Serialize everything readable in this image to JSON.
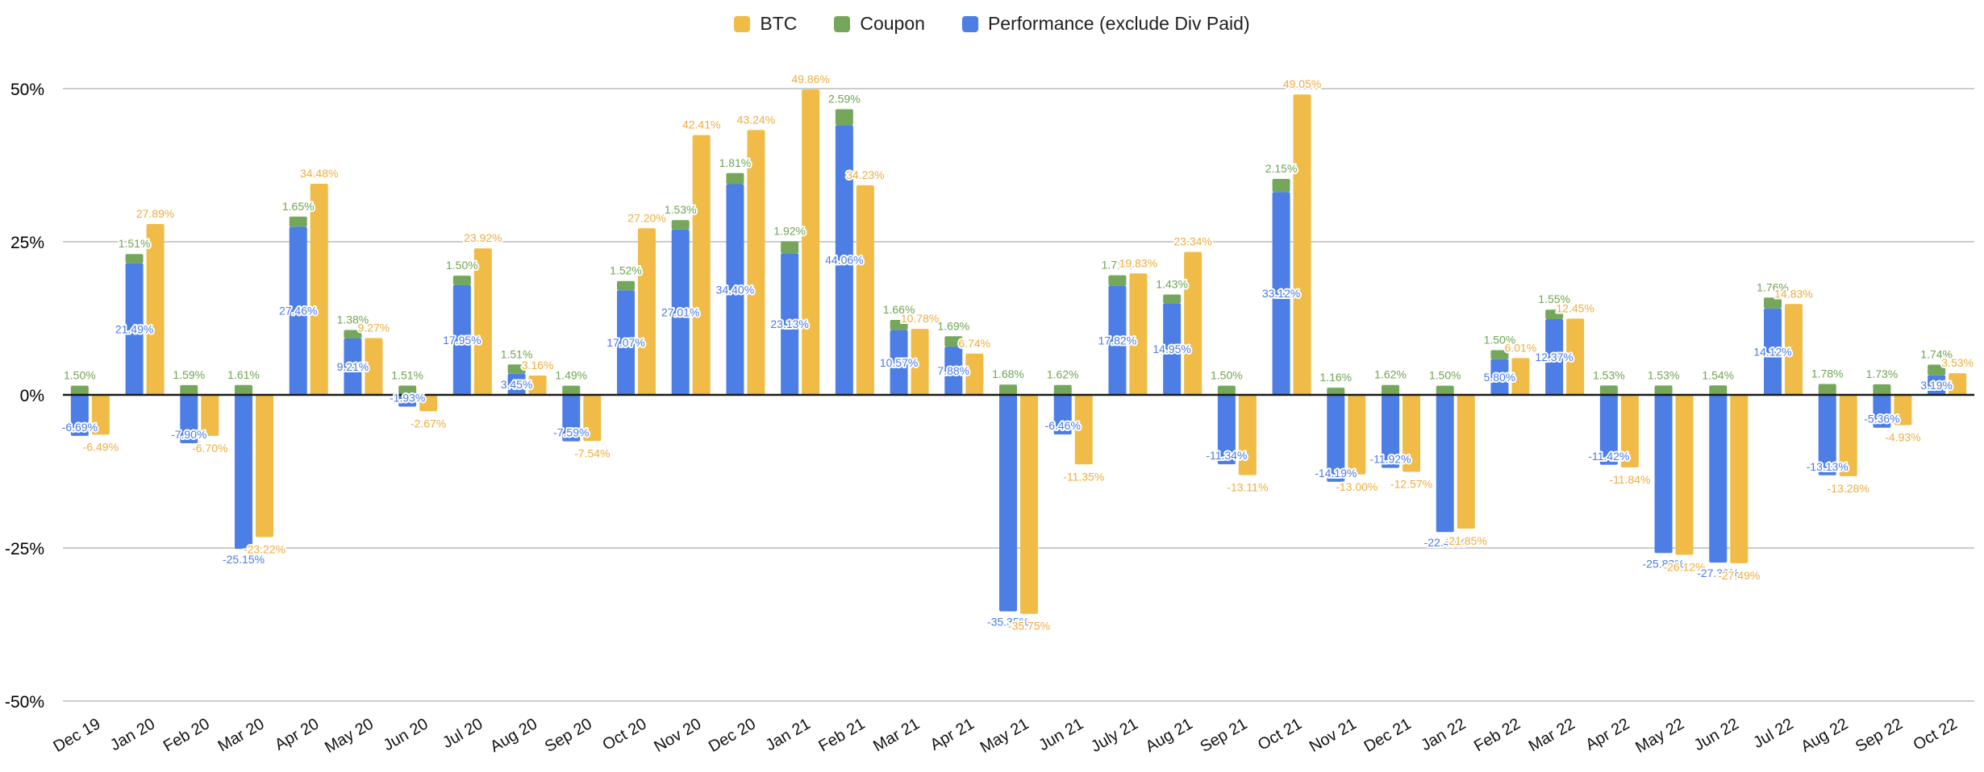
{
  "legend": {
    "items": [
      {
        "label": "BTC",
        "color": "#F0BC47"
      },
      {
        "label": "Coupon",
        "color": "#74A75A"
      },
      {
        "label": "Performance (exclude Div Paid)",
        "color": "#4D7EE6"
      }
    ]
  },
  "chart_data": {
    "type": "bar",
    "title": "",
    "xlabel": "",
    "ylabel": "",
    "ylim": [
      -50,
      50
    ],
    "grid": true,
    "legend_position": "top",
    "bar_structure": "Performance and Coupon are stacked into one column; BTC is a separate column beside it",
    "y_ticks": [
      {
        "value": 50,
        "label": "50%"
      },
      {
        "value": 25,
        "label": "25%"
      },
      {
        "value": 0,
        "label": "0%"
      },
      {
        "value": -25,
        "label": "-25%"
      },
      {
        "value": -50,
        "label": "-50%"
      }
    ],
    "categories": [
      "Dec 19",
      "Jan 20",
      "Feb 20",
      "Mar 20",
      "Apr 20",
      "May 20",
      "Jun 20",
      "Jul 20",
      "Aug 20",
      "Sep 20",
      "Oct 20",
      "Nov 20",
      "Dec 20",
      "Jan 21",
      "Feb 21",
      "Mar 21",
      "Apr 21",
      "May 21",
      "Jun 21",
      "July 21",
      "Aug 21",
      "Sep 21",
      "Oct 21",
      "Nov 21",
      "Dec 21",
      "Jan 22",
      "Feb 22",
      "Mar 22",
      "Apr 22",
      "May 22",
      "Jun 22",
      "Jul 22",
      "Aug 22",
      "Sep 22",
      "Oct 22"
    ],
    "series": [
      {
        "name": "BTC",
        "color": "#F0BC47",
        "label_color": "#EFAC3E",
        "values": [
          -6.49,
          27.89,
          -6.7,
          -23.22,
          34.48,
          9.27,
          -2.67,
          23.92,
          3.16,
          -7.54,
          27.2,
          42.41,
          43.24,
          49.86,
          34.23,
          10.78,
          6.74,
          -35.75,
          -11.35,
          19.83,
          23.34,
          -13.11,
          49.05,
          -13.0,
          -12.57,
          -21.85,
          6.01,
          12.45,
          -11.84,
          -26.12,
          -27.49,
          14.83,
          -13.28,
          -4.93,
          3.53
        ]
      },
      {
        "name": "Coupon",
        "color": "#74A75A",
        "label_color": "#6EA450",
        "values": [
          1.5,
          1.51,
          1.59,
          1.61,
          1.65,
          1.38,
          1.51,
          1.5,
          1.51,
          1.49,
          1.52,
          1.53,
          1.81,
          1.92,
          2.59,
          1.66,
          1.69,
          1.68,
          1.62,
          1.71,
          1.43,
          1.5,
          2.15,
          1.16,
          1.62,
          1.5,
          1.5,
          1.55,
          1.53,
          1.53,
          1.54,
          1.76,
          1.78,
          1.73,
          1.74
        ]
      },
      {
        "name": "Performance (exclude Div Paid)",
        "color": "#4D7EE6",
        "label_color": "#4A7BE8",
        "values": [
          -6.69,
          21.49,
          -7.9,
          -25.15,
          27.46,
          9.21,
          -1.93,
          17.95,
          3.45,
          -7.59,
          17.07,
          27.01,
          34.4,
          23.13,
          44.06,
          10.57,
          7.88,
          -35.35,
          -6.46,
          17.82,
          14.95,
          -11.34,
          33.12,
          -14.19,
          -11.92,
          -22.4,
          5.8,
          12.37,
          -11.42,
          -25.83,
          -27.38,
          14.12,
          -13.13,
          -5.36,
          3.19
        ]
      }
    ]
  }
}
